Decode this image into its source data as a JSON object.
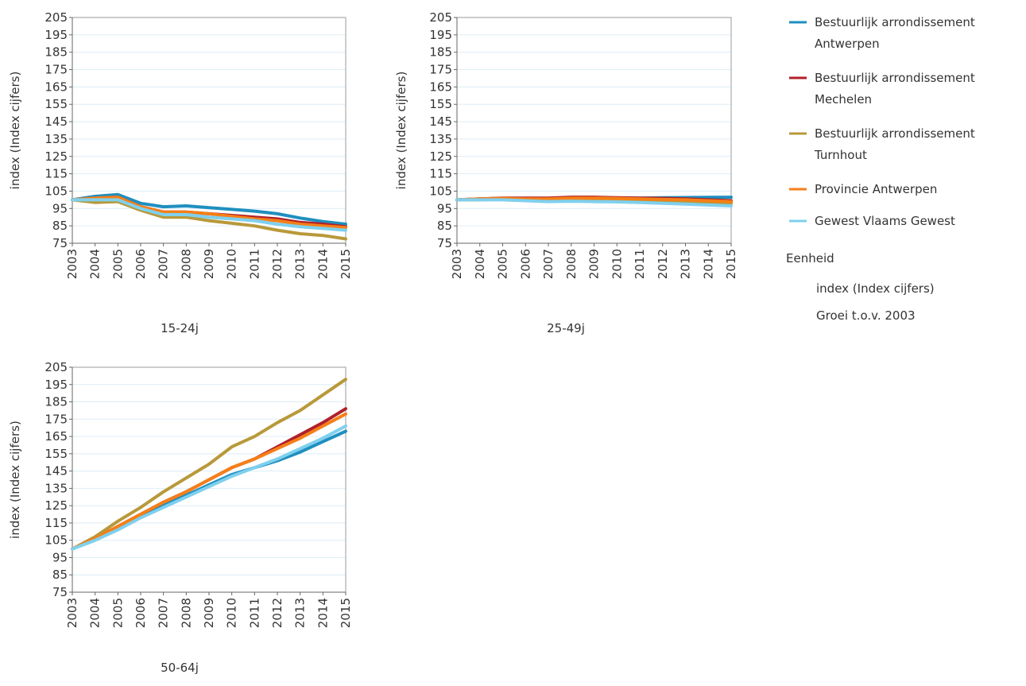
{
  "colors": {
    "axis": "#666666",
    "grid": "#ddeef7",
    "text": "#333333"
  },
  "legend": {
    "series_items": [
      {
        "lines": [
          "Bestuurlijk arrondissement",
          "Antwerpen"
        ],
        "color": "#1f8fbf"
      },
      {
        "lines": [
          "Bestuurlijk arrondissement",
          "Mechelen"
        ],
        "color": "#b0202a"
      },
      {
        "lines": [
          "Bestuurlijk arrondissement",
          "Turnhout"
        ],
        "color": "#b8993a"
      },
      {
        "lines": [
          "Provincie Antwerpen"
        ],
        "color": "#f57f17"
      },
      {
        "lines": [
          "Gewest Vlaams Gewest"
        ],
        "color": "#7fd0ee"
      }
    ],
    "unit_title": "Eenheid",
    "unit_items": [
      "index (Index cijfers)",
      "Groei t.o.v. 2003"
    ]
  },
  "chart_data": [
    {
      "type": "line",
      "title": "15-24j",
      "ylabel": "index (Index cijfers)",
      "xlabel": "",
      "ylim": [
        75,
        205
      ],
      "yticks": [
        75,
        85,
        95,
        105,
        115,
        125,
        135,
        145,
        155,
        165,
        175,
        185,
        195,
        205
      ],
      "grid": true,
      "x": [
        "2003",
        "2004",
        "2005",
        "2006",
        "2007",
        "2008",
        "2009",
        "2010",
        "2011",
        "2012",
        "2013",
        "2014",
        "2015"
      ],
      "series": [
        {
          "name": "Bestuurlijk arrondissement Antwerpen",
          "color": "#1f8fbf",
          "values": [
            100,
            102,
            103,
            98,
            96,
            96.5,
            95.5,
            94.5,
            93.5,
            92,
            89.5,
            87.5,
            86
          ]
        },
        {
          "name": "Bestuurlijk arrondissement Mechelen",
          "color": "#b0202a",
          "values": [
            100,
            101,
            101.5,
            96,
            93,
            93,
            92,
            91,
            90,
            89,
            87,
            86,
            84.5
          ]
        },
        {
          "name": "Bestuurlijk arrondissement Turnhout",
          "color": "#b8993a",
          "values": [
            100,
            98.5,
            99,
            94,
            90,
            90,
            88,
            86.5,
            85,
            82.5,
            80.5,
            79.5,
            77.5
          ]
        },
        {
          "name": "Provincie Antwerpen",
          "color": "#f57f17",
          "values": [
            100,
            101,
            101.5,
            96,
            93,
            93,
            92,
            90.5,
            89,
            88,
            86,
            85,
            84
          ]
        },
        {
          "name": "Gewest Vlaams Gewest",
          "color": "#7fd0ee",
          "values": [
            100,
            100,
            100,
            95,
            91.5,
            91.5,
            90,
            89,
            88,
            86,
            84.5,
            83.5,
            82.5
          ]
        }
      ]
    },
    {
      "type": "line",
      "title": "25-49j",
      "ylabel": "index (Index cijfers)",
      "xlabel": "",
      "ylim": [
        75,
        205
      ],
      "yticks": [
        75,
        85,
        95,
        105,
        115,
        125,
        135,
        145,
        155,
        165,
        175,
        185,
        195,
        205
      ],
      "grid": true,
      "x": [
        "2003",
        "2004",
        "2005",
        "2006",
        "2007",
        "2008",
        "2009",
        "2010",
        "2011",
        "2012",
        "2013",
        "2014",
        "2015"
      ],
      "series": [
        {
          "name": "Bestuurlijk arrondissement Antwerpen",
          "color": "#1f8fbf",
          "values": [
            100,
            100.5,
            100.8,
            100.5,
            100.5,
            101,
            101,
            101,
            101,
            101.2,
            101.3,
            101.4,
            101.5
          ]
        },
        {
          "name": "Bestuurlijk arrondissement Mechelen",
          "color": "#b0202a",
          "values": [
            100,
            100.5,
            101,
            101,
            101,
            101.5,
            101.5,
            101.2,
            101,
            100.8,
            100.5,
            100,
            99.5
          ]
        },
        {
          "name": "Bestuurlijk arrondissement Turnhout",
          "color": "#b8993a",
          "values": [
            100,
            100,
            100.3,
            100,
            99.5,
            100,
            100,
            100,
            99.5,
            99.2,
            98.8,
            98.5,
            98
          ]
        },
        {
          "name": "Provincie Antwerpen",
          "color": "#f57f17",
          "values": [
            100,
            100.5,
            100.8,
            100.5,
            100.5,
            101,
            101,
            100.8,
            100.5,
            100.2,
            100,
            99.5,
            99
          ]
        },
        {
          "name": "Gewest Vlaams Gewest",
          "color": "#7fd0ee",
          "values": [
            100,
            100,
            100,
            99.5,
            99,
            99.2,
            99,
            98.8,
            98.5,
            98,
            97.5,
            97,
            96.5
          ]
        }
      ]
    },
    {
      "type": "line",
      "title": "50-64j",
      "ylabel": "index (Index cijfers)",
      "xlabel": "",
      "ylim": [
        75,
        205
      ],
      "yticks": [
        75,
        85,
        95,
        105,
        115,
        125,
        135,
        145,
        155,
        165,
        175,
        185,
        195,
        205
      ],
      "grid": true,
      "x": [
        "2003",
        "2004",
        "2005",
        "2006",
        "2007",
        "2008",
        "2009",
        "2010",
        "2011",
        "2012",
        "2013",
        "2014",
        "2015"
      ],
      "series": [
        {
          "name": "Bestuurlijk arrondissement Antwerpen",
          "color": "#1f8fbf",
          "values": [
            100,
            106,
            112,
            119,
            125,
            131,
            137,
            143,
            147,
            151,
            156,
            162,
            168
          ]
        },
        {
          "name": "Bestuurlijk arrondissement Mechelen",
          "color": "#b0202a",
          "values": [
            100,
            106,
            113,
            120,
            127,
            133,
            140,
            147,
            152,
            159,
            166,
            173,
            181
          ]
        },
        {
          "name": "Bestuurlijk arrondissement Turnhout",
          "color": "#b8993a",
          "values": [
            100,
            107,
            116,
            124,
            133,
            141,
            149,
            159,
            165,
            173,
            180,
            189,
            198
          ]
        },
        {
          "name": "Provincie Antwerpen",
          "color": "#f57f17",
          "values": [
            100,
            106,
            113,
            120,
            127,
            133,
            140,
            147,
            152,
            158,
            164,
            171,
            178
          ]
        },
        {
          "name": "Gewest Vlaams Gewest",
          "color": "#7fd0ee",
          "values": [
            100,
            105,
            111,
            118,
            124,
            130,
            136,
            142,
            147,
            152,
            158,
            164,
            171
          ]
        }
      ]
    }
  ]
}
